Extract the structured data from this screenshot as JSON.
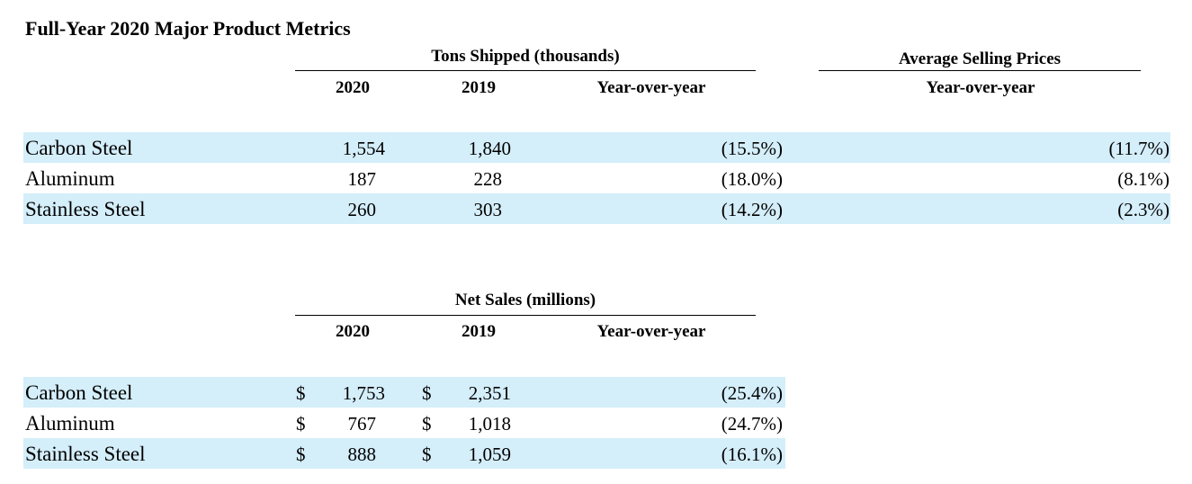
{
  "title": "Full-Year 2020 Major Product Metrics",
  "tons": {
    "group_header": "Tons Shipped (thousands)",
    "col_2020": "2020",
    "col_2019": "2019",
    "col_yoy": "Year-over-year",
    "rows": [
      {
        "label": "Carbon Steel",
        "v2020": "1,554",
        "v2019": "1,840",
        "yoy": "(15.5%)"
      },
      {
        "label": "Aluminum",
        "v2020": "187",
        "v2019": "228",
        "yoy": "(18.0%)"
      },
      {
        "label": "Stainless Steel",
        "v2020": "260",
        "v2019": "303",
        "yoy": "(14.2%)"
      }
    ]
  },
  "asp": {
    "group_header": "Average Selling Prices",
    "col_yoy": "Year-over-year",
    "rows": [
      {
        "yoy": "(11.7%)"
      },
      {
        "yoy": "(8.1%)"
      },
      {
        "yoy": "(2.3%)"
      }
    ]
  },
  "sales": {
    "group_header": "Net Sales (millions)",
    "col_2020": "2020",
    "col_2019": "2019",
    "col_yoy": "Year-over-year",
    "currency": "$",
    "rows": [
      {
        "label": "Carbon Steel",
        "v2020": "1,753",
        "v2019": "2,351",
        "yoy": "(25.4%)"
      },
      {
        "label": "Aluminum",
        "v2020": "767",
        "v2019": "1,018",
        "yoy": "(24.7%)"
      },
      {
        "label": "Stainless Steel",
        "v2020": "888",
        "v2019": "1,059",
        "yoy": "(16.1%)"
      }
    ]
  },
  "colors": {
    "band": "#d4eefa"
  }
}
